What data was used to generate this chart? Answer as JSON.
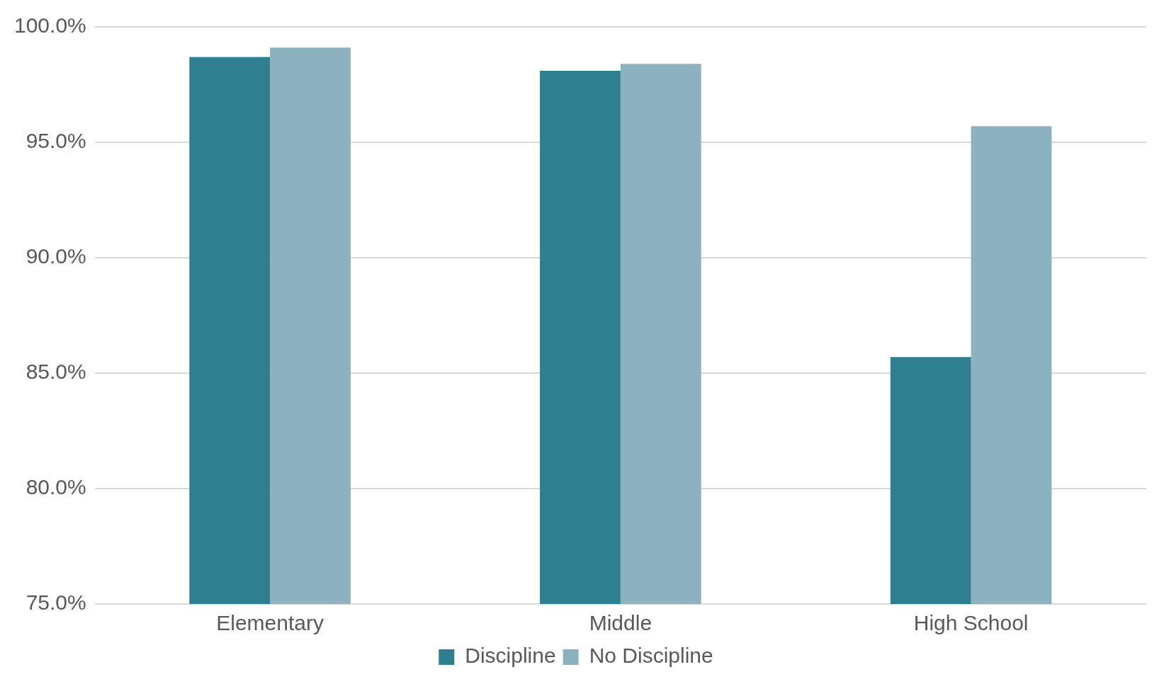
{
  "chart_data": {
    "type": "bar",
    "categories": [
      "Elementary",
      "Middle",
      "High School"
    ],
    "series": [
      {
        "name": "Discipline",
        "color": "#2e7f8f",
        "values": [
          98.7,
          98.1,
          85.7
        ]
      },
      {
        "name": "No Discipline",
        "color": "#8db2bf",
        "values": [
          99.1,
          98.4,
          95.7
        ]
      }
    ],
    "ylim": [
      75,
      100
    ],
    "yticks": [
      {
        "value": 75,
        "label": "75.0%"
      },
      {
        "value": 80,
        "label": "80.0%"
      },
      {
        "value": 85,
        "label": "85.0%"
      },
      {
        "value": 90,
        "label": "90.0%"
      },
      {
        "value": 95,
        "label": "95.0%"
      },
      {
        "value": 100,
        "label": "100.0%"
      }
    ],
    "grid": "y",
    "legend": "bottom"
  }
}
